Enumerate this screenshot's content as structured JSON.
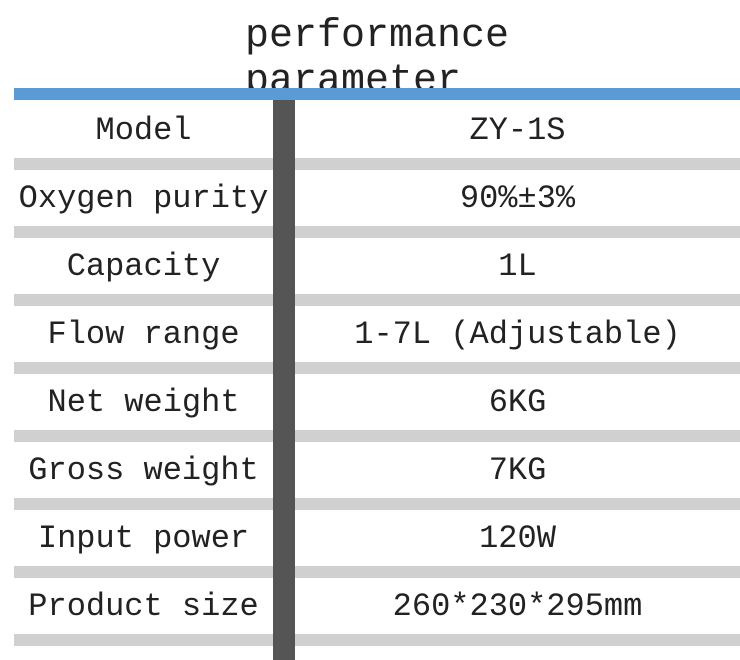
{
  "header": {
    "title": "performance parameter"
  },
  "table": {
    "rows": [
      [
        "Model",
        "ZY-1S"
      ],
      [
        "Oxygen purity",
        "90%±3%"
      ],
      [
        "Capacity",
        "1L"
      ],
      [
        "Flow range",
        "1-7L (Adjustable)"
      ],
      [
        "Net weight",
        "6KG"
      ],
      [
        "Gross weight",
        "7KG"
      ],
      [
        "Input power",
        "120W"
      ],
      [
        "Product size",
        "260*230*295mm"
      ]
    ]
  }
}
